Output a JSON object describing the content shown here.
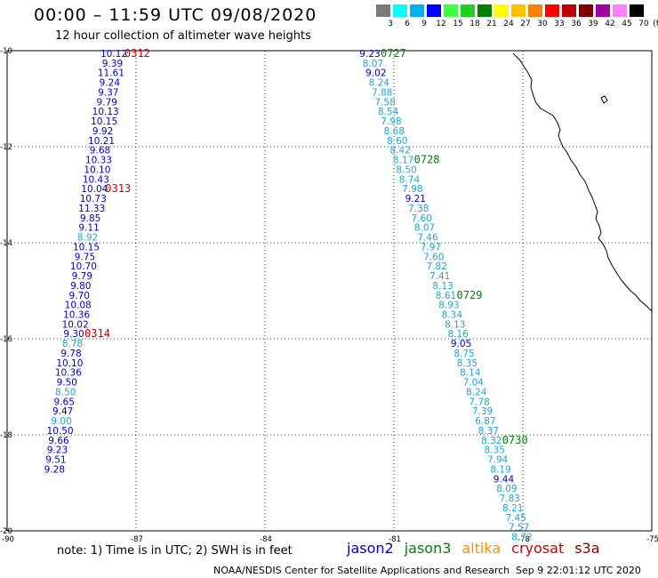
{
  "header": {
    "title": "00:00 – 11:59 UTC 09/08/2020",
    "subtitle": "12 hour collection of altimeter wave heights"
  },
  "color_scale": {
    "unit": "(ft)",
    "labels": [
      "3",
      "6",
      "9",
      "12",
      "15",
      "18",
      "21",
      "24",
      "27",
      "30",
      "33",
      "36",
      "39",
      "42",
      "45",
      "70"
    ],
    "colors": [
      "#7a7a7a",
      "#00ffff",
      "#00b0f0",
      "#0000ff",
      "#40ff40",
      "#20d020",
      "#008000",
      "#ffff00",
      "#ffc000",
      "#ff8000",
      "#ff0000",
      "#c00000",
      "#800000",
      "#a000a0",
      "#ff80ff",
      "#000000"
    ]
  },
  "axes": {
    "lat_labels": [
      "-10",
      "-12",
      "-14",
      "-16",
      "-18",
      "-20"
    ],
    "lat_values": [
      -10,
      -12,
      -14,
      -16,
      -18,
      -20
    ],
    "lon_labels": [
      "-90",
      "-87",
      "-84",
      "-81",
      "-78",
      "-75"
    ],
    "lon_values": [
      -90,
      -87,
      -84,
      -81,
      -78,
      -75
    ]
  },
  "tracks": [
    {
      "id": "west",
      "points": [
        {
          "t": "10.12",
          "c": "#0000cc"
        },
        {
          "t": "9.39",
          "c": "#0000cc"
        },
        {
          "t": "11.61",
          "c": "#0000cc"
        },
        {
          "t": "9.24",
          "c": "#0000cc"
        },
        {
          "t": "9.37",
          "c": "#0000cc"
        },
        {
          "t": "9.79",
          "c": "#0000cc"
        },
        {
          "t": "10.13",
          "c": "#0000cc"
        },
        {
          "t": "10.15",
          "c": "#0000cc"
        },
        {
          "t": "9.92",
          "c": "#0000cc"
        },
        {
          "t": "10.21",
          "c": "#0000cc"
        },
        {
          "t": "9.68",
          "c": "#0000cc"
        },
        {
          "t": "10.33",
          "c": "#0000cc"
        },
        {
          "t": "10.10",
          "c": "#0000cc"
        },
        {
          "t": "10.43",
          "c": "#0000cc"
        },
        {
          "t": "10.04",
          "c": "#0000cc"
        },
        {
          "t": "10.73",
          "c": "#0000cc"
        },
        {
          "t": "11.33",
          "c": "#0000cc"
        },
        {
          "t": "9.85",
          "c": "#0000cc"
        },
        {
          "t": "9.11",
          "c": "#0000cc"
        },
        {
          "t": "8.92",
          "c": "#1aa6d9"
        },
        {
          "t": "10.15",
          "c": "#0000cc"
        },
        {
          "t": "9.75",
          "c": "#0000cc"
        },
        {
          "t": "10.70",
          "c": "#0000cc"
        },
        {
          "t": "9.79",
          "c": "#0000cc"
        },
        {
          "t": "9.80",
          "c": "#0000cc"
        },
        {
          "t": "9.70",
          "c": "#0000cc"
        },
        {
          "t": "10.08",
          "c": "#0000cc"
        },
        {
          "t": "10.36",
          "c": "#0000cc"
        },
        {
          "t": "10.02",
          "c": "#0000cc"
        },
        {
          "t": "9.30",
          "c": "#0000cc"
        },
        {
          "t": "8.78",
          "c": "#1aa6d9"
        },
        {
          "t": "9.78",
          "c": "#0000cc"
        },
        {
          "t": "10.10",
          "c": "#0000cc"
        },
        {
          "t": "10.36",
          "c": "#0000cc"
        },
        {
          "t": "9.50",
          "c": "#0000cc"
        },
        {
          "t": "8.50",
          "c": "#1aa6d9"
        },
        {
          "t": "9.65",
          "c": "#0000cc"
        },
        {
          "t": "9.47",
          "c": "#0000cc"
        },
        {
          "t": "9.00",
          "c": "#1aa6d9"
        },
        {
          "t": "10.50",
          "c": "#0000cc"
        },
        {
          "t": "9.66",
          "c": "#0000cc"
        },
        {
          "t": "9.23",
          "c": "#0000cc"
        },
        {
          "t": "9.51",
          "c": "#0000cc"
        },
        {
          "t": "9.28",
          "c": "#0000cc"
        }
      ],
      "times": [
        {
          "t": "0312",
          "c": "#d00000",
          "after": 0
        },
        {
          "t": "0313",
          "c": "#d00000",
          "after": 14
        },
        {
          "t": "0314",
          "c": "#d00000",
          "after": 29
        }
      ]
    },
    {
      "id": "east",
      "points": [
        {
          "t": "9.23",
          "c": "#0000cc"
        },
        {
          "t": "8.07",
          "c": "#1aa6d9"
        },
        {
          "t": "9.02",
          "c": "#0000cc"
        },
        {
          "t": "8.24",
          "c": "#1aa6d9"
        },
        {
          "t": "7.88",
          "c": "#1aa6d9"
        },
        {
          "t": "7.58",
          "c": "#1aa6d9"
        },
        {
          "t": "8.54",
          "c": "#1aa6d9"
        },
        {
          "t": "7.98",
          "c": "#1aa6d9"
        },
        {
          "t": "8.68",
          "c": "#1aa6d9"
        },
        {
          "t": "8.60",
          "c": "#1aa6d9"
        },
        {
          "t": "8.42",
          "c": "#1aa6d9"
        },
        {
          "t": "8.17",
          "c": "#1aa6d9"
        },
        {
          "t": "8.50",
          "c": "#1aa6d9"
        },
        {
          "t": "8.74",
          "c": "#1aa6d9"
        },
        {
          "t": "7.98",
          "c": "#1aa6d9"
        },
        {
          "t": "9.21",
          "c": "#0000cc"
        },
        {
          "t": "7.38",
          "c": "#1aa6d9"
        },
        {
          "t": "7.60",
          "c": "#1aa6d9"
        },
        {
          "t": "8.07",
          "c": "#1aa6d9"
        },
        {
          "t": "7.46",
          "c": "#1aa6d9"
        },
        {
          "t": "7.97",
          "c": "#1aa6d9"
        },
        {
          "t": "7.60",
          "c": "#1aa6d9"
        },
        {
          "t": "7.82",
          "c": "#1aa6d9"
        },
        {
          "t": "7.41",
          "c": "#1aa6d9"
        },
        {
          "t": "8.13",
          "c": "#1aa6d9"
        },
        {
          "t": "8.61",
          "c": "#1aa6d9"
        },
        {
          "t": "8.93",
          "c": "#1aa6d9"
        },
        {
          "t": "8.34",
          "c": "#1aa6d9"
        },
        {
          "t": "8.13",
          "c": "#1aa6d9"
        },
        {
          "t": "8.16",
          "c": "#1aa6d9"
        },
        {
          "t": "9.05",
          "c": "#0000cc"
        },
        {
          "t": "8.75",
          "c": "#1aa6d9"
        },
        {
          "t": "8.35",
          "c": "#1aa6d9"
        },
        {
          "t": "8.14",
          "c": "#1aa6d9"
        },
        {
          "t": "7.04",
          "c": "#1aa6d9"
        },
        {
          "t": "8.24",
          "c": "#1aa6d9"
        },
        {
          "t": "7.78",
          "c": "#1aa6d9"
        },
        {
          "t": "7.39",
          "c": "#1aa6d9"
        },
        {
          "t": "6.87",
          "c": "#1aa6d9"
        },
        {
          "t": "8.37",
          "c": "#1aa6d9"
        },
        {
          "t": "8.32",
          "c": "#1aa6d9"
        },
        {
          "t": "8.35",
          "c": "#1aa6d9"
        },
        {
          "t": "7.94",
          "c": "#1aa6d9"
        },
        {
          "t": "8.19",
          "c": "#1aa6d9"
        },
        {
          "t": "9.44",
          "c": "#0000cc"
        },
        {
          "t": "8.09",
          "c": "#1aa6d9"
        },
        {
          "t": "7.83",
          "c": "#1aa6d9"
        },
        {
          "t": "8.21",
          "c": "#1aa6d9"
        },
        {
          "t": "7.45",
          "c": "#1aa6d9"
        },
        {
          "t": "7.57",
          "c": "#1aa6d9"
        },
        {
          "t": "8.72",
          "c": "#1aa6d9"
        }
      ],
      "times": [
        {
          "t": "0727",
          "c": "#008000",
          "after": 0
        },
        {
          "t": "0728",
          "c": "#008000",
          "after": 11
        },
        {
          "t": "0729",
          "c": "#008000",
          "after": 25
        },
        {
          "t": "0730",
          "c": "#008000",
          "after": 40
        }
      ]
    }
  ],
  "legend": {
    "items": [
      {
        "label": "jason2",
        "color": "#0000cc"
      },
      {
        "label": "jason3",
        "color": "#008000"
      },
      {
        "label": "altika",
        "color": "#ff8c00"
      },
      {
        "label": "cryosat",
        "color": "#d00000"
      },
      {
        "label": "s3a",
        "color": "#8b0000"
      }
    ]
  },
  "footer": {
    "note": "note: 1) Time is in UTC; 2) SWH is in feet",
    "credit": "NOAA/NESDIS Center for Satellite Applications and Research",
    "timestamp": "Sep  9 22:01:12 UTC 2020"
  }
}
